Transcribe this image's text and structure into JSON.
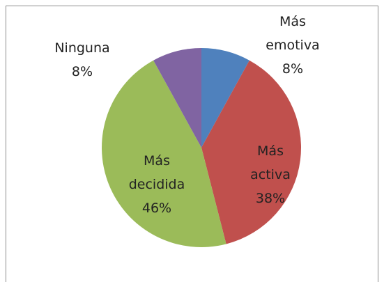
{
  "chart_data": {
    "type": "pie",
    "categories": [
      "Más emotiva",
      "Más activa",
      "Más decidida",
      "Ninguna"
    ],
    "values": [
      8,
      38,
      46,
      8
    ],
    "value_labels": [
      "8%",
      "38%",
      "46%",
      "8%"
    ],
    "colors": [
      "#4f81bd",
      "#c0504d",
      "#9bbb59",
      "#8064a2"
    ]
  }
}
